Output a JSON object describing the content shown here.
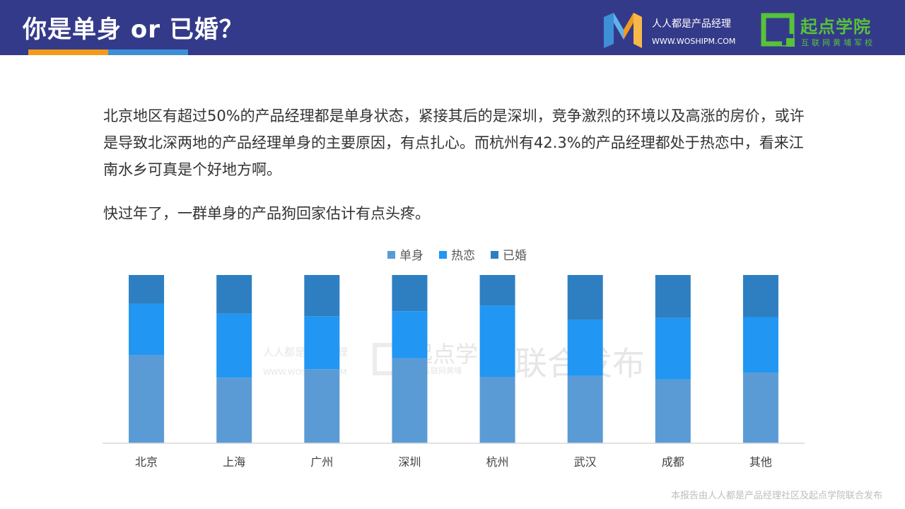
{
  "header": {
    "title": "你是单身 or 已婚？",
    "brand1_name": "人人都是产品经理",
    "brand1_url": "WWW.WOSHIPM.COM",
    "brand2_name": "起点学院",
    "brand2_sub": "互联网黄埔军校"
  },
  "body": {
    "paragraph1": "北京地区有超过50%的产品经理都是单身状态，紧接其后的是深圳，竞争激烈的环境以及高涨的房价，或许是导致北深两地的产品经理单身的主要原因，有点扎心。而杭州有42.3%的产品经理都处于热恋中，看来江南水乡可真是个好地方啊。",
    "paragraph2": "快过年了，一群单身的产品狗回家估计有点头疼。"
  },
  "footer": {
    "text": "本报告由人人都是产品经理社区及起点学院联合发布"
  },
  "watermark": {
    "site": "人人都是产品经理",
    "url": "WWW.WOSHIPM.COM",
    "school": "起点学",
    "school_sub": "互联网黄埔",
    "joint": "联合发布"
  },
  "colors": {
    "header_bg": "#343a8a",
    "orange": "#f29a1e",
    "blue": "#3e8fd6",
    "green": "#57c23a",
    "single": "#5b9bd5",
    "dating": "#2196f3",
    "married": "#2e7fc1"
  },
  "chart_data": {
    "type": "bar",
    "stacked": true,
    "percent_stacked": true,
    "categories": [
      "北京",
      "上海",
      "广州",
      "深圳",
      "杭州",
      "武汉",
      "成都",
      "其他"
    ],
    "series": [
      {
        "name": "单身",
        "values": [
          52.5,
          39.0,
          44.0,
          50.5,
          39.5,
          40.0,
          38.0,
          42.0
        ]
      },
      {
        "name": "热恋",
        "values": [
          30.5,
          38.0,
          31.5,
          28.0,
          42.3,
          33.5,
          36.5,
          33.0
        ]
      },
      {
        "name": "已婚",
        "values": [
          17.0,
          23.0,
          24.5,
          21.5,
          18.2,
          26.5,
          25.5,
          25.0
        ]
      }
    ],
    "ylim": [
      0,
      100
    ],
    "legend_position": "top-center",
    "title": "",
    "xlabel": "",
    "ylabel": ""
  }
}
